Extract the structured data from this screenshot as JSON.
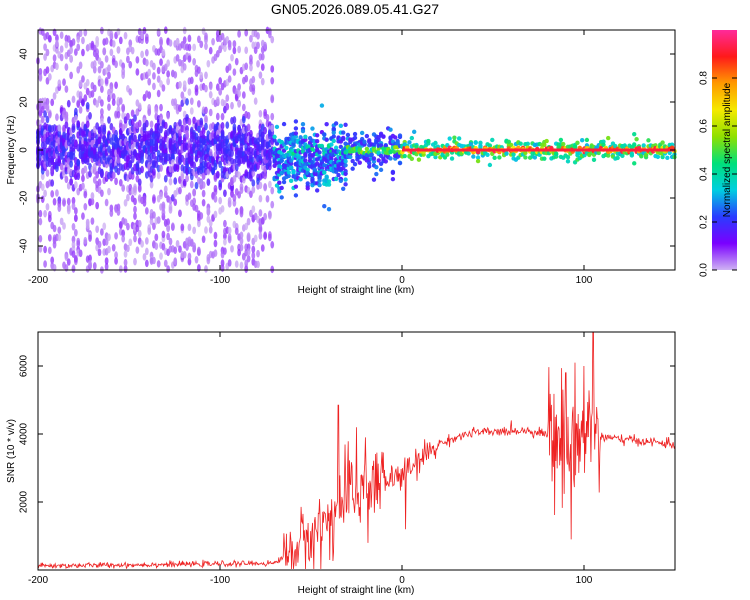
{
  "chart_data": [
    {
      "type": "heatmap",
      "title": "GN05.2026.089.05.41.G27",
      "xlabel": "Height of straight line (km)",
      "ylabel": "Frequency (Hz)",
      "xlim": [
        -200,
        150
      ],
      "ylim": [
        -50,
        50
      ],
      "xticks": [
        -200,
        -100,
        0,
        100
      ],
      "yticks": [
        -40,
        -20,
        0,
        20,
        40
      ],
      "colorbar": {
        "label": "Normalized spectral amplitude",
        "range": [
          0.0,
          1.0
        ],
        "ticks": [
          0.0,
          0.2,
          0.4,
          0.6,
          0.8
        ],
        "colormap": [
          "#cfb3f3",
          "#7a00ff",
          "#2a3cff",
          "#00cfe0",
          "#00e07a",
          "#8fe000",
          "#f5ea00",
          "#ff9a00",
          "#ff1a1a",
          "#ff2a9a"
        ]
      },
      "ridge": {
        "description_free": true,
        "segments": [
          {
            "x": [
              -200,
              -70
            ],
            "freq_center": 0,
            "spread_hz": 45,
            "amplitude": 0.15
          },
          {
            "x": [
              -70,
              -30
            ],
            "freq_center": -3,
            "spread_hz": 10,
            "amplitude": 0.35
          },
          {
            "x": [
              -30,
              0
            ],
            "freq_center": 0,
            "spread_hz": 4,
            "amplitude": 0.5
          },
          {
            "x": [
              0,
              150
            ],
            "freq_center": 0,
            "spread_hz": 2,
            "amplitude": 0.9
          }
        ]
      }
    },
    {
      "type": "line",
      "xlabel": "Height of straight line (km)",
      "ylabel": "SNR (10 * v/v)",
      "xlim": [
        -200,
        150
      ],
      "ylim": [
        0,
        7000
      ],
      "xticks": [
        -200,
        -100,
        0,
        100
      ],
      "yticks": [
        2000,
        4000,
        6000
      ],
      "color": "#ee2222",
      "series": [
        {
          "name": "SNR",
          "x": [
            -200,
            -150,
            -100,
            -70,
            -60,
            -50,
            -45,
            -40,
            -35,
            -30,
            -25,
            -20,
            -15,
            -10,
            -5,
            0,
            5,
            10,
            15,
            20,
            30,
            40,
            50,
            60,
            70,
            80,
            85,
            90,
            95,
            100,
            105,
            110,
            120,
            130,
            140,
            150
          ],
          "y": [
            120,
            150,
            180,
            200,
            600,
            1000,
            1200,
            1500,
            1800,
            2100,
            2300,
            2400,
            2500,
            2600,
            2700,
            2800,
            3000,
            3200,
            3500,
            3700,
            3900,
            4050,
            4050,
            4100,
            4100,
            4000,
            3800,
            3900,
            3600,
            3900,
            4200,
            3900,
            3850,
            3800,
            3750,
            3700
          ]
        }
      ],
      "spikes": [
        {
          "x": -35,
          "peak": 4850
        },
        {
          "x": -25,
          "peak": 4200
        },
        {
          "x": -20,
          "peak": 3900
        },
        {
          "x": 90,
          "peak": 5800
        },
        {
          "x": 95,
          "peak": 6100
        },
        {
          "x": 100,
          "peak": 6000
        },
        {
          "x": 105,
          "peak": 7100
        },
        {
          "x": 93,
          "peak": 900
        },
        {
          "x": 2,
          "peak": 1200
        }
      ]
    }
  ]
}
